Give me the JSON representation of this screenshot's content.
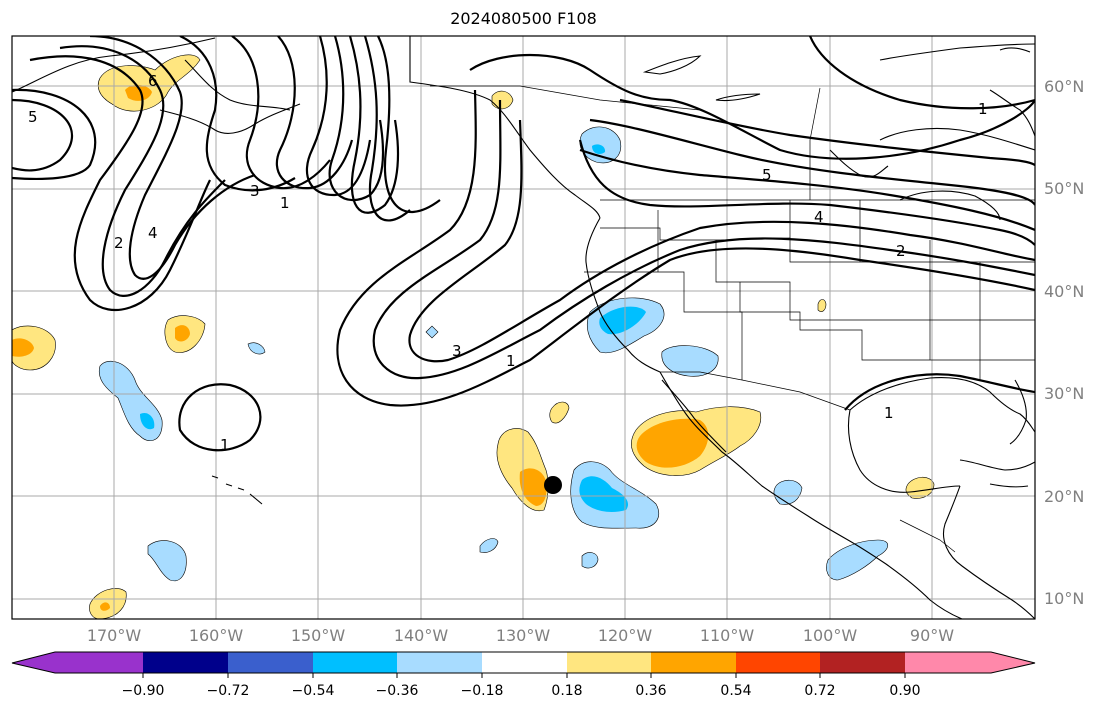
{
  "title": "2024080500 F108",
  "map": {
    "latitude_labels": [
      "60°N",
      "50°N",
      "40°N",
      "30°N",
      "20°N",
      "10°N"
    ],
    "longitude_labels": [
      "170°W",
      "160°W",
      "150°W",
      "140°W",
      "130°W",
      "120°W",
      "110°W",
      "100°W",
      "90°W"
    ],
    "contour_labels": [
      "5",
      "6",
      "3",
      "1",
      "2",
      "4",
      "3",
      "1",
      "1",
      "5",
      "4",
      "2",
      "1",
      "1"
    ],
    "marker": "storm-position-dot"
  },
  "colorbar": {
    "ticks": [
      "−0.90",
      "−0.72",
      "−0.54",
      "−0.36",
      "−0.18",
      "0.18",
      "0.36",
      "0.54",
      "0.72",
      "0.90"
    ],
    "colors": [
      "#9932cc",
      "#00008b",
      "#3a5fcd",
      "#00bfff",
      "#a8dcff",
      "#ffffff",
      "#ffe680",
      "#ffa500",
      "#ff4500",
      "#b22222",
      "#ff88aa"
    ]
  },
  "colors": {
    "light_blue": "#a8dcff",
    "blue": "#00bfff",
    "yellow": "#ffe680",
    "orange": "#ffa500",
    "grid": "#a8a8a8",
    "axis_label": "#808080"
  }
}
